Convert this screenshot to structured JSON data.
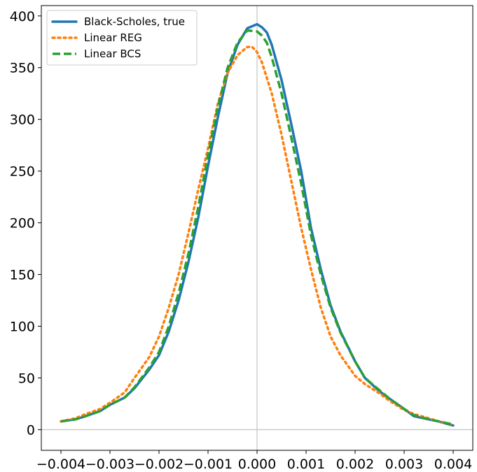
{
  "chart_data": {
    "type": "line",
    "title": "",
    "xlabel": "",
    "ylabel": "",
    "xlim": [
      -0.0044,
      0.0044
    ],
    "ylim": [
      -20,
      410
    ],
    "xticks": [
      -0.004,
      -0.003,
      -0.002,
      -0.001,
      0.0,
      0.001,
      0.002,
      0.003,
      0.004
    ],
    "xtick_labels": [
      "−0.004",
      "−0.003",
      "−0.002",
      "−0.001",
      "0.000",
      "0.001",
      "0.002",
      "0.003",
      "0.004"
    ],
    "yticks": [
      0,
      50,
      100,
      150,
      200,
      250,
      300,
      350,
      400
    ],
    "ytick_labels": [
      "0",
      "50",
      "100",
      "150",
      "200",
      "250",
      "300",
      "350",
      "400"
    ],
    "grid": false,
    "reference_lines": {
      "vertical_x": 0.0,
      "horizontal_y": 0
    },
    "reference_line_color": "#c8c8c8",
    "legend": {
      "position": "top-left"
    },
    "series": [
      {
        "name": "Black-Scholes, true",
        "color": "#1f77b4",
        "style": "solid",
        "x": [
          -0.004,
          -0.0037,
          -0.0035,
          -0.0032,
          -0.003,
          -0.0027,
          -0.0025,
          -0.0022,
          -0.002,
          -0.0018,
          -0.0016,
          -0.0014,
          -0.0012,
          -0.001,
          -0.0008,
          -0.0006,
          -0.0004,
          -0.0002,
          0.0,
          0.0001,
          0.0002,
          0.0003,
          0.0005,
          0.0007,
          0.0009,
          0.0011,
          0.0013,
          0.0015,
          0.0017,
          0.002,
          0.0022,
          0.0025,
          0.0027,
          0.003,
          0.0032,
          0.0035,
          0.0037,
          0.004
        ],
        "y": [
          8,
          10,
          13,
          18,
          24,
          31,
          40,
          58,
          72,
          95,
          125,
          162,
          205,
          255,
          302,
          345,
          372,
          388,
          392,
          389,
          384,
          372,
          338,
          295,
          250,
          195,
          155,
          120,
          95,
          66,
          50,
          37,
          30,
          20,
          13,
          10,
          8,
          4
        ]
      },
      {
        "name": "Linear REG",
        "color": "#ff7f0e",
        "style": "dotted",
        "x": [
          -0.004,
          -0.0037,
          -0.0035,
          -0.0032,
          -0.003,
          -0.0027,
          -0.0025,
          -0.0022,
          -0.002,
          -0.0018,
          -0.0016,
          -0.0014,
          -0.0012,
          -0.001,
          -0.0008,
          -0.0006,
          -0.0004,
          -0.0002,
          -0.0001,
          0.0,
          0.0001,
          0.0003,
          0.0005,
          0.0007,
          0.0009,
          0.0011,
          0.0013,
          0.0015,
          0.0017,
          0.002,
          0.0022,
          0.0025,
          0.0027,
          0.003,
          0.0032,
          0.0035,
          0.0037,
          0.004
        ],
        "y": [
          8,
          11,
          15,
          20,
          26,
          36,
          50,
          70,
          90,
          118,
          150,
          190,
          232,
          272,
          315,
          345,
          362,
          370,
          370,
          365,
          355,
          325,
          285,
          240,
          195,
          155,
          118,
          90,
          72,
          52,
          44,
          35,
          28,
          19,
          15,
          11,
          8,
          5
        ]
      },
      {
        "name": "Linear BCS",
        "color": "#2ca02c",
        "style": "dashed",
        "x": [
          -0.004,
          -0.0037,
          -0.0035,
          -0.0032,
          -0.003,
          -0.0027,
          -0.0025,
          -0.0022,
          -0.002,
          -0.0018,
          -0.0016,
          -0.0014,
          -0.0012,
          -0.001,
          -0.0008,
          -0.0006,
          -0.0004,
          -0.0002,
          0.0,
          0.0001,
          0.0002,
          0.0003,
          0.0005,
          0.0007,
          0.0009,
          0.0011,
          0.0013,
          0.0015,
          0.0017,
          0.002,
          0.0022,
          0.0025,
          0.0027,
          0.003,
          0.0032,
          0.0035,
          0.0037,
          0.004
        ],
        "y": [
          8,
          10,
          13,
          18,
          24,
          31,
          41,
          60,
          75,
          100,
          132,
          170,
          215,
          265,
          312,
          350,
          374,
          386,
          385,
          381,
          374,
          360,
          325,
          282,
          238,
          188,
          150,
          118,
          94,
          66,
          50,
          38,
          30,
          20,
          14,
          10,
          8,
          5
        ]
      }
    ]
  }
}
